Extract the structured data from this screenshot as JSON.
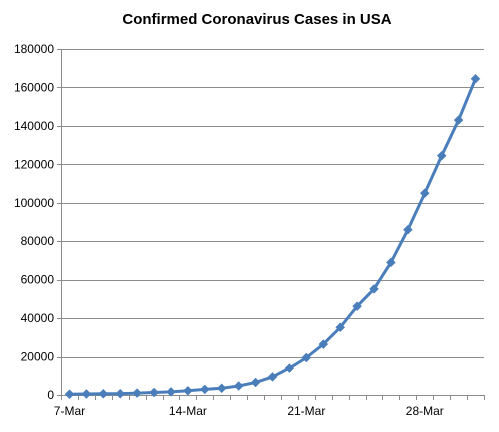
{
  "chart_data": {
    "type": "line",
    "title": "Confirmed Coronavirus Cases in USA",
    "xlabel": "",
    "ylabel": "",
    "x_tick_labels": [
      "7-Mar",
      "14-Mar",
      "21-Mar",
      "28-Mar"
    ],
    "x_tick_dates": [
      "2020-03-07",
      "2020-03-14",
      "2020-03-21",
      "2020-03-28"
    ],
    "ylim": [
      0,
      180000
    ],
    "y_ticks": [
      0,
      20000,
      40000,
      60000,
      80000,
      100000,
      120000,
      140000,
      160000,
      180000
    ],
    "grid": true,
    "legend": "none",
    "series": [
      {
        "color": "#4a7ebb",
        "marker": "diamond",
        "x": [
          "2020-03-07",
          "2020-03-08",
          "2020-03-09",
          "2020-03-10",
          "2020-03-11",
          "2020-03-12",
          "2020-03-13",
          "2020-03-14",
          "2020-03-15",
          "2020-03-16",
          "2020-03-17",
          "2020-03-18",
          "2020-03-19",
          "2020-03-20",
          "2020-03-21",
          "2020-03-22",
          "2020-03-23",
          "2020-03-24",
          "2020-03-25",
          "2020-03-26",
          "2020-03-27",
          "2020-03-28",
          "2020-03-29",
          "2020-03-30",
          "2020-03-31"
        ],
        "values": [
          400,
          500,
          600,
          700,
          1000,
          1300,
          1600,
          2200,
          2900,
          3500,
          4700,
          6500,
          9400,
          14000,
          19500,
          26500,
          35200,
          46200,
          55200,
          69000,
          86000,
          105000,
          124500,
          143000,
          164500
        ]
      }
    ]
  }
}
